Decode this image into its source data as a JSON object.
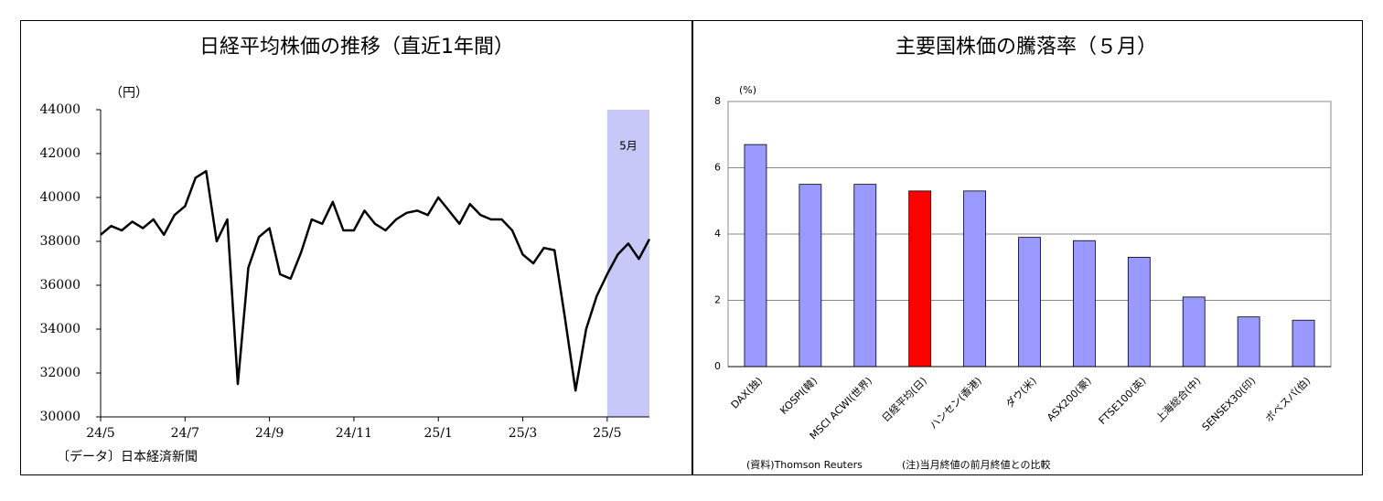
{
  "chart_data": [
    {
      "type": "line",
      "title": "日経平均株価の推移（直近1年間）",
      "y_label": "（円）",
      "source": "〔データ〕日本経済新聞",
      "annotation": "5月",
      "shade_color": "#c8c8f8",
      "color": "#000000",
      "categories": [
        "24/5",
        null,
        null,
        null,
        null,
        null,
        null,
        null,
        "24/7",
        null,
        null,
        null,
        null,
        null,
        null,
        null,
        "24/9",
        null,
        null,
        null,
        null,
        null,
        null,
        null,
        "24/11",
        null,
        null,
        null,
        null,
        null,
        null,
        null,
        "25/1",
        null,
        null,
        null,
        null,
        null,
        null,
        null,
        "25/3",
        null,
        null,
        null,
        null,
        null,
        null,
        null,
        "25/5",
        null,
        null,
        null,
        null
      ],
      "values": [
        38300,
        38700,
        38500,
        38900,
        38600,
        39000,
        38300,
        39200,
        39600,
        40900,
        41200,
        38000,
        39000,
        31500,
        36800,
        38200,
        38600,
        36500,
        36300,
        37500,
        39000,
        38800,
        39800,
        38500,
        38500,
        39400,
        38800,
        38500,
        39000,
        39300,
        39400,
        39200,
        40000,
        39400,
        38800,
        39700,
        39200,
        39000,
        39000,
        38500,
        37400,
        37000,
        37700,
        37600,
        34500,
        31200,
        34000,
        35500,
        36500,
        37400,
        37900,
        37200,
        38100
      ],
      "ylim": [
        30000,
        44000
      ],
      "yticks": [
        30000,
        32000,
        34000,
        36000,
        38000,
        40000,
        42000,
        44000
      ]
    },
    {
      "type": "bar",
      "title": "主要国株価の騰落率（５月）",
      "y_label": "(%)",
      "source": "(資料)Thomson Reuters",
      "note": "(注)当月終値の前月終値との比較",
      "categories": [
        "DAX(独)",
        "KOSPI(韓)",
        "MSCI ACWI(世界)",
        "日経平均(日)",
        "ハンセン(香港)",
        "ダウ(米)",
        "ASX200(豪)",
        "FTSE100(英)",
        "上海総合(中)",
        "SENSEX30(印)",
        "ボベスパ(伯)"
      ],
      "values": [
        6.7,
        5.5,
        5.5,
        5.3,
        5.3,
        3.9,
        3.8,
        3.3,
        2.1,
        1.5,
        1.4
      ],
      "colors": [
        "#9999ff",
        "#9999ff",
        "#9999ff",
        "#ff0000",
        "#9999ff",
        "#9999ff",
        "#9999ff",
        "#9999ff",
        "#9999ff",
        "#9999ff",
        "#9999ff"
      ],
      "ylim": [
        0,
        8
      ],
      "yticks": [
        0,
        2,
        4,
        6,
        8
      ],
      "grid": true
    }
  ]
}
